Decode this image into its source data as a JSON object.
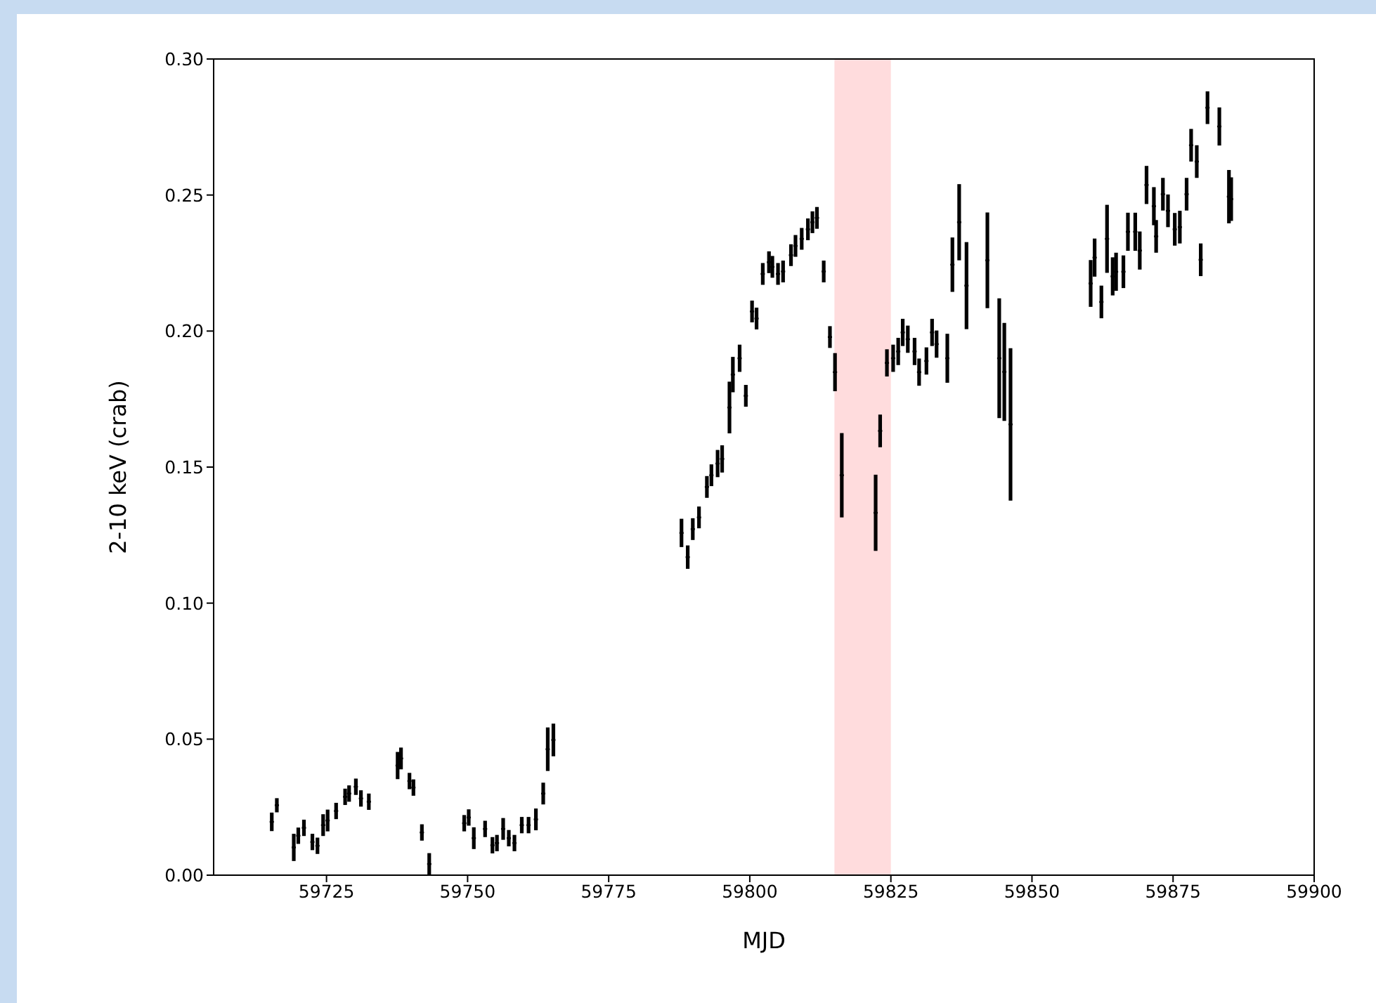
{
  "chart_data": {
    "type": "scatter",
    "xlabel": "MJD",
    "ylabel": "2-10 keV (crab)",
    "xlim": [
      59705,
      59900
    ],
    "xticks": [
      59725,
      59750,
      59775,
      59800,
      59825,
      59850,
      59875,
      59900
    ],
    "ylim": [
      0,
      0.3
    ],
    "yticks": [
      {
        "value": 0,
        "label": "0.00"
      },
      {
        "value": 0.05,
        "label": "0.05"
      },
      {
        "value": 0.1,
        "label": "0.10"
      },
      {
        "value": 0.15,
        "label": "0.15"
      },
      {
        "value": 0.2,
        "label": "0.20"
      },
      {
        "value": 0.25,
        "label": "0.25"
      },
      {
        "value": 0.3,
        "label": "0.30"
      }
    ],
    "grid": false,
    "bands": [
      {
        "axis": "x",
        "from": 59815,
        "to": 59825,
        "color": "#ffdcdd"
      }
    ],
    "series": [
      {
        "color": "#000000",
        "x": [
          59715.3,
          59716.2,
          59719.2,
          59720.0,
          59721.0,
          59722.5,
          59723.4,
          59724.4,
          59725.2,
          59726.7,
          59728.3,
          59729.0,
          59730.2,
          59731.1,
          59732.5,
          59737.6,
          59738.2,
          59739.7,
          59740.4,
          59741.9,
          59743.2,
          59749.4,
          59750.2,
          59751.1,
          59753.1,
          59754.4,
          59755.2,
          59756.3,
          59757.3,
          59758.3,
          59759.6,
          59760.8,
          59762.1,
          59763.4,
          59764.2,
          59765.2,
          59787.9,
          59789.0,
          59789.9,
          59791.0,
          59792.4,
          59793.2,
          59794.3,
          59795.1,
          59796.4,
          59797.0,
          59798.2,
          59799.3,
          59800.4,
          59801.2,
          59802.3,
          59803.4,
          59804.0,
          59805.0,
          59805.9,
          59807.3,
          59808.1,
          59809.2,
          59810.3,
          59811.1,
          59811.9,
          59813.1,
          59814.2,
          59815.1,
          59816.3,
          59822.3,
          59823.1,
          59824.3,
          59825.4,
          59826.3,
          59827.1,
          59828.0,
          59829.2,
          59830.0,
          59831.3,
          59832.3,
          59833.1,
          59835.0,
          59835.9,
          59837.1,
          59838.4,
          59842.1,
          59844.2,
          59845.1,
          59846.2,
          59860.4,
          59861.1,
          59862.3,
          59863.3,
          59864.3,
          59864.9,
          59866.2,
          59867.0,
          59868.3,
          59869.1,
          59870.3,
          59871.6,
          59872.0,
          59873.2,
          59874.1,
          59875.3,
          59876.2,
          59877.4,
          59878.2,
          59879.2,
          59879.9,
          59881.1,
          59883.2,
          59884.9,
          59885.3
        ],
        "values": [
          0.0196,
          0.0257,
          0.0102,
          0.0145,
          0.0174,
          0.0122,
          0.0108,
          0.0184,
          0.0201,
          0.0236,
          0.0288,
          0.03,
          0.0325,
          0.0282,
          0.027,
          0.0403,
          0.0429,
          0.0346,
          0.0322,
          0.0157,
          0.0041,
          0.0191,
          0.0212,
          0.0136,
          0.017,
          0.011,
          0.0118,
          0.017,
          0.0136,
          0.0118,
          0.0184,
          0.0184,
          0.0205,
          0.03,
          0.0463,
          0.0497,
          0.1258,
          0.1169,
          0.1272,
          0.1315,
          0.1427,
          0.147,
          0.1513,
          0.153,
          0.1719,
          0.184,
          0.19,
          0.1762,
          0.2072,
          0.2046,
          0.221,
          0.2253,
          0.2236,
          0.221,
          0.2219,
          0.2279,
          0.2313,
          0.2339,
          0.2374,
          0.24,
          0.2416,
          0.2219,
          0.1978,
          0.1849,
          0.147,
          0.1332,
          0.1633,
          0.1883,
          0.19,
          0.1925,
          0.1995,
          0.197,
          0.1925,
          0.1849,
          0.189,
          0.1995,
          0.1952,
          0.19,
          0.2244,
          0.24,
          0.2167,
          0.226,
          0.19,
          0.185,
          0.1657,
          0.2175,
          0.227,
          0.2107,
          0.2339,
          0.2201,
          0.2218,
          0.2218,
          0.2365,
          0.2365,
          0.2296,
          0.2537,
          0.2459,
          0.2348,
          0.2503,
          0.2442,
          0.2374,
          0.2382,
          0.2503,
          0.2683,
          0.2623,
          0.2262,
          0.2821,
          0.2752,
          0.2494,
          0.2485
        ],
        "errors": [
          0.0034,
          0.0026,
          0.005,
          0.003,
          0.003,
          0.003,
          0.003,
          0.004,
          0.004,
          0.003,
          0.003,
          0.003,
          0.003,
          0.003,
          0.003,
          0.005,
          0.004,
          0.003,
          0.003,
          0.003,
          0.004,
          0.003,
          0.003,
          0.004,
          0.003,
          0.003,
          0.003,
          0.004,
          0.003,
          0.003,
          0.003,
          0.003,
          0.004,
          0.004,
          0.008,
          0.006,
          0.0052,
          0.0043,
          0.004,
          0.004,
          0.004,
          0.004,
          0.005,
          0.005,
          0.0095,
          0.0065,
          0.005,
          0.004,
          0.004,
          0.004,
          0.004,
          0.004,
          0.004,
          0.004,
          0.004,
          0.004,
          0.004,
          0.004,
          0.004,
          0.004,
          0.004,
          0.004,
          0.004,
          0.007,
          0.0155,
          0.014,
          0.006,
          0.005,
          0.005,
          0.005,
          0.005,
          0.005,
          0.005,
          0.005,
          0.005,
          0.005,
          0.005,
          0.009,
          0.01,
          0.014,
          0.016,
          0.0176,
          0.022,
          0.018,
          0.028,
          0.0086,
          0.007,
          0.006,
          0.0125,
          0.007,
          0.007,
          0.006,
          0.007,
          0.007,
          0.007,
          0.007,
          0.007,
          0.006,
          0.006,
          0.006,
          0.006,
          0.006,
          0.006,
          0.006,
          0.006,
          0.006,
          0.006,
          0.007,
          0.0098,
          0.008
        ]
      }
    ]
  }
}
